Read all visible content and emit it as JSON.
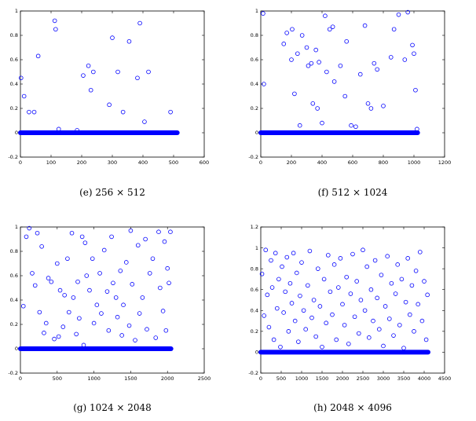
{
  "chart_data": [
    {
      "type": "scatter",
      "caption": "(e) 256 × 512",
      "xlim": [
        0,
        600
      ],
      "ylim": [
        -0.2,
        1
      ],
      "xticks": [
        0,
        100,
        200,
        300,
        400,
        500,
        600
      ],
      "yticks": [
        -0.2,
        0,
        0.2,
        0.4,
        0.6,
        0.8,
        1
      ],
      "marker_color": "#0000ff",
      "baseline": {
        "y": 0,
        "x_start": 0,
        "x_end": 512
      },
      "x": [
        2,
        12,
        28,
        45,
        58,
        112,
        115,
        125,
        185,
        205,
        222,
        230,
        238,
        290,
        300,
        318,
        335,
        355,
        382,
        390,
        405,
        418,
        490
      ],
      "y": [
        0.45,
        0.3,
        0.17,
        0.17,
        0.63,
        0.92,
        0.85,
        0.03,
        0.02,
        0.47,
        0.55,
        0.35,
        0.5,
        0.23,
        0.78,
        0.5,
        0.17,
        0.75,
        0.45,
        0.9,
        0.09,
        0.5,
        0.17
      ]
    },
    {
      "type": "scatter",
      "caption": "(f) 512 × 1024",
      "xlim": [
        0,
        1200
      ],
      "ylim": [
        -0.2,
        1
      ],
      "xticks": [
        0,
        200,
        400,
        600,
        800,
        1000,
        1200
      ],
      "yticks": [
        -0.2,
        0,
        0.2,
        0.4,
        0.6,
        0.8,
        1
      ],
      "marker_color": "#0000ff",
      "baseline": {
        "y": 0,
        "x_start": 0,
        "x_end": 1024
      },
      "x": [
        15,
        20,
        150,
        170,
        200,
        205,
        220,
        240,
        255,
        270,
        300,
        310,
        330,
        340,
        360,
        370,
        380,
        400,
        420,
        430,
        450,
        470,
        480,
        520,
        550,
        560,
        590,
        620,
        650,
        680,
        700,
        720,
        740,
        760,
        800,
        850,
        870,
        900,
        940,
        960,
        990,
        1000,
        1010,
        1020
      ],
      "y": [
        0.98,
        0.4,
        0.73,
        0.82,
        0.6,
        0.85,
        0.32,
        0.65,
        0.06,
        0.8,
        0.7,
        0.55,
        0.57,
        0.24,
        0.68,
        0.2,
        0.58,
        0.08,
        0.96,
        0.5,
        0.85,
        0.87,
        0.42,
        0.55,
        0.3,
        0.75,
        0.06,
        0.05,
        0.48,
        0.88,
        0.24,
        0.2,
        0.57,
        0.52,
        0.22,
        0.62,
        0.85,
        0.97,
        0.6,
        0.99,
        0.72,
        0.65,
        0.35,
        0.03
      ]
    },
    {
      "type": "scatter",
      "caption": "(g) 1024 × 2048",
      "xlim": [
        0,
        2500
      ],
      "ylim": [
        -0.2,
        1
      ],
      "xticks": [
        0,
        500,
        1000,
        1500,
        2000,
        2500
      ],
      "yticks": [
        -0.2,
        0,
        0.2,
        0.4,
        0.6,
        0.8,
        1
      ],
      "marker_color": "#0000ff",
      "baseline": {
        "y": 0,
        "x_start": 0,
        "x_end": 2048
      },
      "x": [
        40,
        80,
        120,
        160,
        200,
        230,
        260,
        290,
        320,
        350,
        380,
        420,
        460,
        500,
        520,
        540,
        580,
        600,
        640,
        660,
        700,
        720,
        760,
        780,
        800,
        840,
        860,
        880,
        900,
        940,
        980,
        1000,
        1040,
        1080,
        1100,
        1140,
        1180,
        1200,
        1240,
        1260,
        1300,
        1320,
        1360,
        1380,
        1400,
        1440,
        1480,
        1500,
        1520,
        1560,
        1600,
        1620,
        1660,
        1700,
        1720,
        1760,
        1800,
        1840,
        1880,
        1900,
        1940,
        1960,
        1980,
        2000,
        2020,
        2040
      ],
      "y": [
        0.35,
        0.92,
        0.99,
        0.62,
        0.52,
        0.95,
        0.3,
        0.84,
        0.13,
        0.21,
        0.58,
        0.55,
        0.08,
        0.7,
        0.1,
        0.48,
        0.18,
        0.44,
        0.74,
        0.3,
        0.95,
        0.42,
        0.12,
        0.55,
        0.25,
        0.92,
        0.03,
        0.87,
        0.6,
        0.48,
        0.74,
        0.21,
        0.36,
        0.62,
        0.29,
        0.81,
        0.47,
        0.15,
        0.92,
        0.54,
        0.42,
        0.26,
        0.64,
        0.11,
        0.36,
        0.71,
        0.19,
        0.97,
        0.53,
        0.07,
        0.85,
        0.29,
        0.42,
        0.9,
        0.16,
        0.62,
        0.74,
        0.09,
        0.96,
        0.5,
        0.31,
        0.88,
        0.15,
        0.66,
        0.54,
        0.96
      ]
    },
    {
      "type": "scatter",
      "caption": "(h) 2048 × 4096",
      "xlim": [
        0,
        4500
      ],
      "ylim": [
        -0.2,
        1.2
      ],
      "xticks": [
        0,
        500,
        1000,
        1500,
        2000,
        2500,
        3000,
        3500,
        4000,
        4500
      ],
      "yticks": [
        -0.2,
        0,
        0.2,
        0.4,
        0.6,
        0.8,
        1,
        1.2
      ],
      "marker_color": "#0000ff",
      "baseline": {
        "y": 0,
        "x_start": 0,
        "x_end": 4096
      },
      "x": [
        30,
        80,
        120,
        160,
        200,
        250,
        280,
        320,
        360,
        400,
        440,
        480,
        520,
        560,
        600,
        640,
        680,
        720,
        760,
        800,
        840,
        880,
        920,
        960,
        1000,
        1050,
        1100,
        1150,
        1200,
        1250,
        1300,
        1350,
        1400,
        1450,
        1500,
        1550,
        1600,
        1650,
        1700,
        1750,
        1800,
        1850,
        1900,
        1950,
        2000,
        2050,
        2100,
        2150,
        2200,
        2250,
        2300,
        2350,
        2400,
        2450,
        2500,
        2550,
        2600,
        2650,
        2700,
        2750,
        2800,
        2850,
        2900,
        2950,
        3000,
        3050,
        3100,
        3150,
        3200,
        3250,
        3300,
        3350,
        3400,
        3450,
        3500,
        3550,
        3600,
        3650,
        3700,
        3750,
        3800,
        3850,
        3900,
        3950,
        4000,
        4050,
        4080
      ],
      "y": [
        0.75,
        0.35,
        0.98,
        0.55,
        0.24,
        0.88,
        0.62,
        0.12,
        0.95,
        0.42,
        0.7,
        0.05,
        0.82,
        0.38,
        0.58,
        0.91,
        0.2,
        0.66,
        0.47,
        0.95,
        0.3,
        0.76,
        0.1,
        0.54,
        0.86,
        0.4,
        0.22,
        0.64,
        0.97,
        0.33,
        0.5,
        0.15,
        0.8,
        0.44,
        0.05,
        0.7,
        0.28,
        0.93,
        0.58,
        0.36,
        0.84,
        0.12,
        0.62,
        0.9,
        0.46,
        0.26,
        0.72,
        0.08,
        0.56,
        0.94,
        0.34,
        0.68,
        0.18,
        0.5,
        0.98,
        0.4,
        0.82,
        0.14,
        0.6,
        0.3,
        0.88,
        0.52,
        0.22,
        0.74,
        0.06,
        0.44,
        0.92,
        0.32,
        0.66,
        0.16,
        0.56,
        0.84,
        0.26,
        0.7,
        0.04,
        0.48,
        0.9,
        0.36,
        0.64,
        0.2,
        0.78,
        0.46,
        0.96,
        0.3,
        0.68,
        0.12,
        0.55
      ]
    }
  ]
}
